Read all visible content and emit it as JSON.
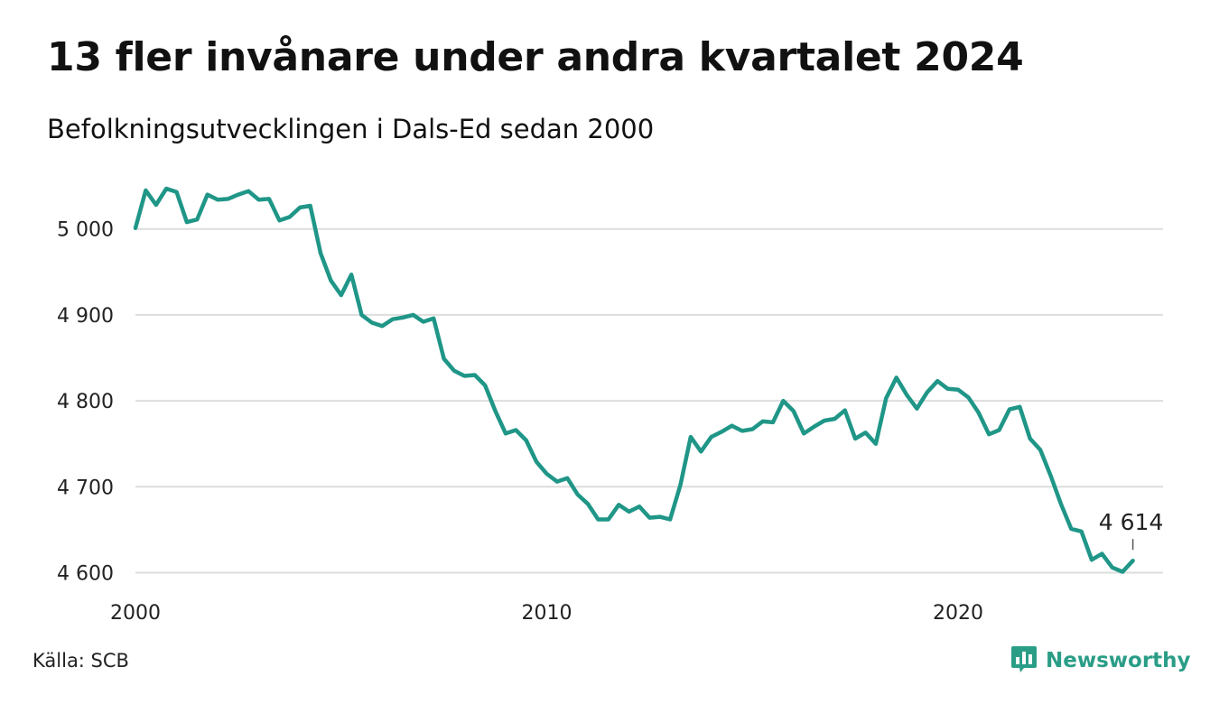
{
  "title": "13 fler invånare under andra kvartalet 2024",
  "subtitle": "Befolkningsutvecklingen i Dals-Ed sedan 2000",
  "source": "Källa: SCB",
  "brand": {
    "name": "Newsworthy",
    "icon": "newsworthy-logo-icon",
    "color": "#2a9d87"
  },
  "chart_data": {
    "type": "line",
    "title": "13 fler invånare under andra kvartalet 2024",
    "subtitle": "Befolkningsutvecklingen i Dals-Ed sedan 2000",
    "xlim": [
      2000,
      2025
    ],
    "ylim": [
      4600,
      5050
    ],
    "x_ticks": [
      {
        "value": 2000,
        "label": "2000"
      },
      {
        "value": 2010,
        "label": "2010"
      },
      {
        "value": 2020,
        "label": "2020"
      }
    ],
    "y_ticks": [
      {
        "value": 4600,
        "label": "4 600"
      },
      {
        "value": 4700,
        "label": "4 700"
      },
      {
        "value": 4800,
        "label": "4 800"
      },
      {
        "value": 4900,
        "label": "4 900"
      },
      {
        "value": 5000,
        "label": "5 000"
      }
    ],
    "grid": true,
    "line_color": "#1f9687",
    "end_label": "4 614",
    "series": [
      {
        "values": [
          [
            2000.0,
            5001
          ],
          [
            2000.25,
            5045
          ],
          [
            2000.5,
            5028
          ],
          [
            2000.75,
            5047
          ],
          [
            2001.0,
            5043
          ],
          [
            2001.25,
            5008
          ],
          [
            2001.5,
            5011
          ],
          [
            2001.75,
            5040
          ],
          [
            2002.0,
            5034
          ],
          [
            2002.25,
            5035
          ],
          [
            2002.5,
            5040
          ],
          [
            2002.75,
            5044
          ],
          [
            2003.0,
            5034
          ],
          [
            2003.25,
            5035
          ],
          [
            2003.5,
            5010
          ],
          [
            2003.75,
            5014
          ],
          [
            2004.0,
            5025
          ],
          [
            2004.25,
            5027
          ],
          [
            2004.5,
            4972
          ],
          [
            2004.75,
            4940
          ],
          [
            2005.0,
            4923
          ],
          [
            2005.25,
            4947
          ],
          [
            2005.5,
            4900
          ],
          [
            2005.75,
            4891
          ],
          [
            2006.0,
            4887
          ],
          [
            2006.25,
            4895
          ],
          [
            2006.5,
            4897
          ],
          [
            2006.75,
            4900
          ],
          [
            2007.0,
            4892
          ],
          [
            2007.25,
            4896
          ],
          [
            2007.5,
            4849
          ],
          [
            2007.75,
            4835
          ],
          [
            2008.0,
            4829
          ],
          [
            2008.25,
            4830
          ],
          [
            2008.5,
            4818
          ],
          [
            2008.75,
            4788
          ],
          [
            2009.0,
            4762
          ],
          [
            2009.25,
            4766
          ],
          [
            2009.5,
            4754
          ],
          [
            2009.75,
            4729
          ],
          [
            2010.0,
            4715
          ],
          [
            2010.25,
            4706
          ],
          [
            2010.5,
            4710
          ],
          [
            2010.75,
            4691
          ],
          [
            2011.0,
            4680
          ],
          [
            2011.25,
            4662
          ],
          [
            2011.5,
            4662
          ],
          [
            2011.75,
            4679
          ],
          [
            2012.0,
            4671
          ],
          [
            2012.25,
            4677
          ],
          [
            2012.5,
            4664
          ],
          [
            2012.75,
            4665
          ],
          [
            2013.0,
            4662
          ],
          [
            2013.25,
            4702
          ],
          [
            2013.5,
            4758
          ],
          [
            2013.75,
            4741
          ],
          [
            2014.0,
            4758
          ],
          [
            2014.25,
            4764
          ],
          [
            2014.5,
            4771
          ],
          [
            2014.75,
            4765
          ],
          [
            2015.0,
            4767
          ],
          [
            2015.25,
            4776
          ],
          [
            2015.5,
            4775
          ],
          [
            2015.75,
            4800
          ],
          [
            2016.0,
            4788
          ],
          [
            2016.25,
            4762
          ],
          [
            2016.5,
            4770
          ],
          [
            2016.75,
            4777
          ],
          [
            2017.0,
            4779
          ],
          [
            2017.25,
            4789
          ],
          [
            2017.5,
            4756
          ],
          [
            2017.75,
            4763
          ],
          [
            2018.0,
            4750
          ],
          [
            2018.25,
            4803
          ],
          [
            2018.5,
            4827
          ],
          [
            2018.75,
            4807
          ],
          [
            2019.0,
            4791
          ],
          [
            2019.25,
            4810
          ],
          [
            2019.5,
            4823
          ],
          [
            2019.75,
            4814
          ],
          [
            2020.0,
            4813
          ],
          [
            2020.25,
            4804
          ],
          [
            2020.5,
            4786
          ],
          [
            2020.75,
            4761
          ],
          [
            2021.0,
            4766
          ],
          [
            2021.25,
            4790
          ],
          [
            2021.5,
            4793
          ],
          [
            2021.75,
            4756
          ],
          [
            2022.0,
            4743
          ],
          [
            2022.25,
            4713
          ],
          [
            2022.5,
            4680
          ],
          [
            2022.75,
            4651
          ],
          [
            2023.0,
            4648
          ],
          [
            2023.25,
            4615
          ],
          [
            2023.5,
            4622
          ],
          [
            2023.75,
            4606
          ],
          [
            2024.0,
            4601
          ],
          [
            2024.25,
            4614
          ]
        ]
      }
    ]
  }
}
